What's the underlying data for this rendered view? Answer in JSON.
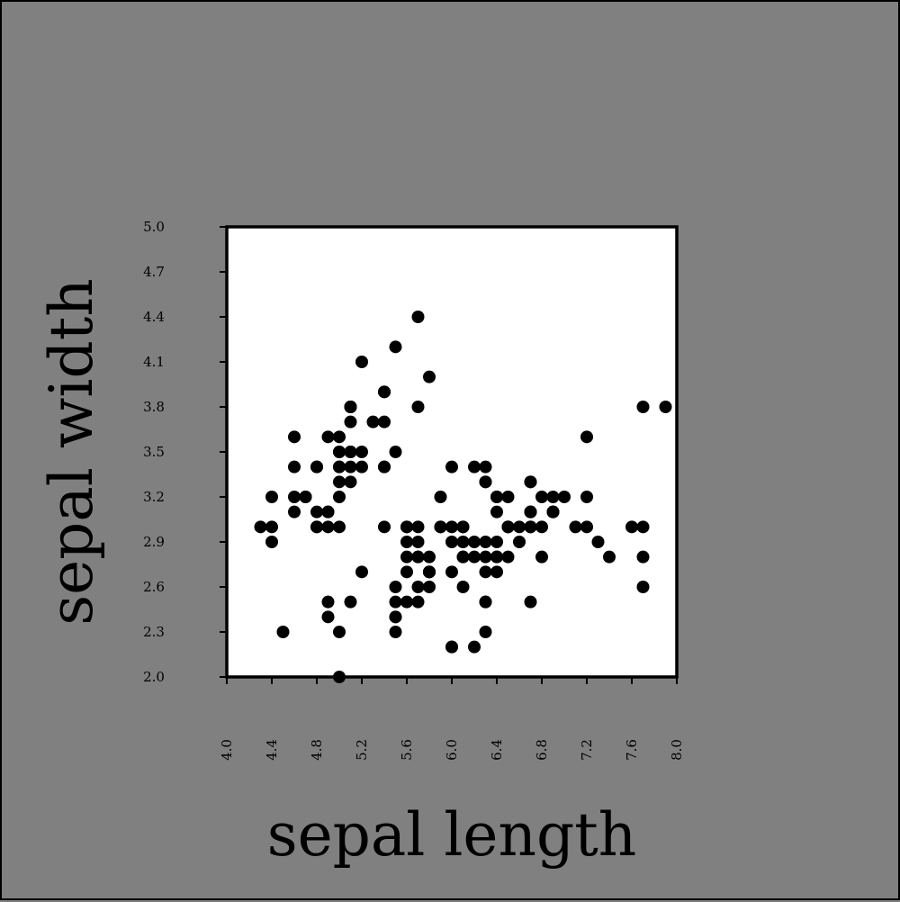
{
  "colors": {
    "page_background": "#808080",
    "plot_background": "#ffffff",
    "marker": "#000000",
    "axes": "#000000"
  },
  "chart_data": {
    "type": "scatter",
    "xlabel": "sepal length",
    "ylabel": "sepal width",
    "xlim": [
      4.0,
      8.0
    ],
    "ylim": [
      2.0,
      5.0
    ],
    "x_ticks": [
      "4.0",
      "4.4",
      "4.8",
      "5.2",
      "5.6",
      "6.0",
      "6.4",
      "6.8",
      "7.2",
      "7.6",
      "8.0"
    ],
    "y_ticks": [
      "2.0",
      "2.3",
      "2.6",
      "2.9",
      "3.2",
      "3.5",
      "3.8",
      "4.1",
      "4.4",
      "4.7",
      "5.0"
    ],
    "x_tick_rotation": "vertical",
    "grid": false,
    "legend": "none",
    "points": [
      [
        5.1,
        3.5
      ],
      [
        4.9,
        3.0
      ],
      [
        4.7,
        3.2
      ],
      [
        4.6,
        3.1
      ],
      [
        5.0,
        3.6
      ],
      [
        5.4,
        3.9
      ],
      [
        4.6,
        3.4
      ],
      [
        5.0,
        3.4
      ],
      [
        4.4,
        2.9
      ],
      [
        4.9,
        3.1
      ],
      [
        5.4,
        3.7
      ],
      [
        4.8,
        3.4
      ],
      [
        4.8,
        3.0
      ],
      [
        4.3,
        3.0
      ],
      [
        5.8,
        4.0
      ],
      [
        5.7,
        4.4
      ],
      [
        5.4,
        3.9
      ],
      [
        5.1,
        3.5
      ],
      [
        5.7,
        3.8
      ],
      [
        5.1,
        3.8
      ],
      [
        5.4,
        3.4
      ],
      [
        5.1,
        3.7
      ],
      [
        4.6,
        3.6
      ],
      [
        5.1,
        3.3
      ],
      [
        4.8,
        3.4
      ],
      [
        5.0,
        3.0
      ],
      [
        5.0,
        3.4
      ],
      [
        5.2,
        3.5
      ],
      [
        5.2,
        3.4
      ],
      [
        4.7,
        3.2
      ],
      [
        4.8,
        3.1
      ],
      [
        5.4,
        3.4
      ],
      [
        5.2,
        4.1
      ],
      [
        5.5,
        4.2
      ],
      [
        4.9,
        3.1
      ],
      [
        5.0,
        3.2
      ],
      [
        5.5,
        3.5
      ],
      [
        4.9,
        3.6
      ],
      [
        4.4,
        3.0
      ],
      [
        5.1,
        3.4
      ],
      [
        5.0,
        3.5
      ],
      [
        4.5,
        2.3
      ],
      [
        4.4,
        3.2
      ],
      [
        5.0,
        3.5
      ],
      [
        5.1,
        3.8
      ],
      [
        4.8,
        3.0
      ],
      [
        5.1,
        3.8
      ],
      [
        4.6,
        3.2
      ],
      [
        5.3,
        3.7
      ],
      [
        5.0,
        3.3
      ],
      [
        7.0,
        3.2
      ],
      [
        6.4,
        3.2
      ],
      [
        6.9,
        3.1
      ],
      [
        5.5,
        2.3
      ],
      [
        6.5,
        2.8
      ],
      [
        5.7,
        2.8
      ],
      [
        6.3,
        3.3
      ],
      [
        4.9,
        2.4
      ],
      [
        6.6,
        2.9
      ],
      [
        5.2,
        2.7
      ],
      [
        5.0,
        2.0
      ],
      [
        5.9,
        3.0
      ],
      [
        6.0,
        2.2
      ],
      [
        6.1,
        2.9
      ],
      [
        5.6,
        2.9
      ],
      [
        6.7,
        3.1
      ],
      [
        5.6,
        3.0
      ],
      [
        5.8,
        2.7
      ],
      [
        6.2,
        2.2
      ],
      [
        5.6,
        2.5
      ],
      [
        5.9,
        3.2
      ],
      [
        6.1,
        2.8
      ],
      [
        6.3,
        2.5
      ],
      [
        6.1,
        2.8
      ],
      [
        6.4,
        2.9
      ],
      [
        6.6,
        3.0
      ],
      [
        6.8,
        2.8
      ],
      [
        6.7,
        3.0
      ],
      [
        6.0,
        2.9
      ],
      [
        5.7,
        2.6
      ],
      [
        5.5,
        2.4
      ],
      [
        5.5,
        2.4
      ],
      [
        5.8,
        2.7
      ],
      [
        6.0,
        2.7
      ],
      [
        5.4,
        3.0
      ],
      [
        6.0,
        3.4
      ],
      [
        6.7,
        3.1
      ],
      [
        6.3,
        2.3
      ],
      [
        5.6,
        3.0
      ],
      [
        5.5,
        2.5
      ],
      [
        5.5,
        2.6
      ],
      [
        6.1,
        3.0
      ],
      [
        5.8,
        2.6
      ],
      [
        5.0,
        2.3
      ],
      [
        5.6,
        2.7
      ],
      [
        5.7,
        3.0
      ],
      [
        5.7,
        2.9
      ],
      [
        6.2,
        2.9
      ],
      [
        5.1,
        2.5
      ],
      [
        5.7,
        2.8
      ],
      [
        6.3,
        3.3
      ],
      [
        5.8,
        2.7
      ],
      [
        7.1,
        3.0
      ],
      [
        6.3,
        2.9
      ],
      [
        6.5,
        3.0
      ],
      [
        7.6,
        3.0
      ],
      [
        4.9,
        2.5
      ],
      [
        7.3,
        2.9
      ],
      [
        6.7,
        2.5
      ],
      [
        7.2,
        3.6
      ],
      [
        6.5,
        3.2
      ],
      [
        6.4,
        2.7
      ],
      [
        6.8,
        3.0
      ],
      [
        5.7,
        2.5
      ],
      [
        5.8,
        2.8
      ],
      [
        6.4,
        3.2
      ],
      [
        6.5,
        3.0
      ],
      [
        7.7,
        3.8
      ],
      [
        7.7,
        2.6
      ],
      [
        6.0,
        2.2
      ],
      [
        6.9,
        3.2
      ],
      [
        5.6,
        2.8
      ],
      [
        7.7,
        2.8
      ],
      [
        6.3,
        2.7
      ],
      [
        6.7,
        3.3
      ],
      [
        7.2,
        3.2
      ],
      [
        6.2,
        2.8
      ],
      [
        6.1,
        3.0
      ],
      [
        6.4,
        2.8
      ],
      [
        7.2,
        3.0
      ],
      [
        7.4,
        2.8
      ],
      [
        7.9,
        3.8
      ],
      [
        6.4,
        2.8
      ],
      [
        6.3,
        2.8
      ],
      [
        6.1,
        2.6
      ],
      [
        7.7,
        3.0
      ],
      [
        6.3,
        3.4
      ],
      [
        6.4,
        3.1
      ],
      [
        6.0,
        3.0
      ],
      [
        6.9,
        3.1
      ],
      [
        6.7,
        3.1
      ],
      [
        6.9,
        3.1
      ],
      [
        5.8,
        2.7
      ],
      [
        6.8,
        3.2
      ],
      [
        6.7,
        3.3
      ],
      [
        6.7,
        3.0
      ],
      [
        6.3,
        2.5
      ],
      [
        6.5,
        3.0
      ],
      [
        6.2,
        3.4
      ],
      [
        5.9,
        3.0
      ]
    ]
  }
}
